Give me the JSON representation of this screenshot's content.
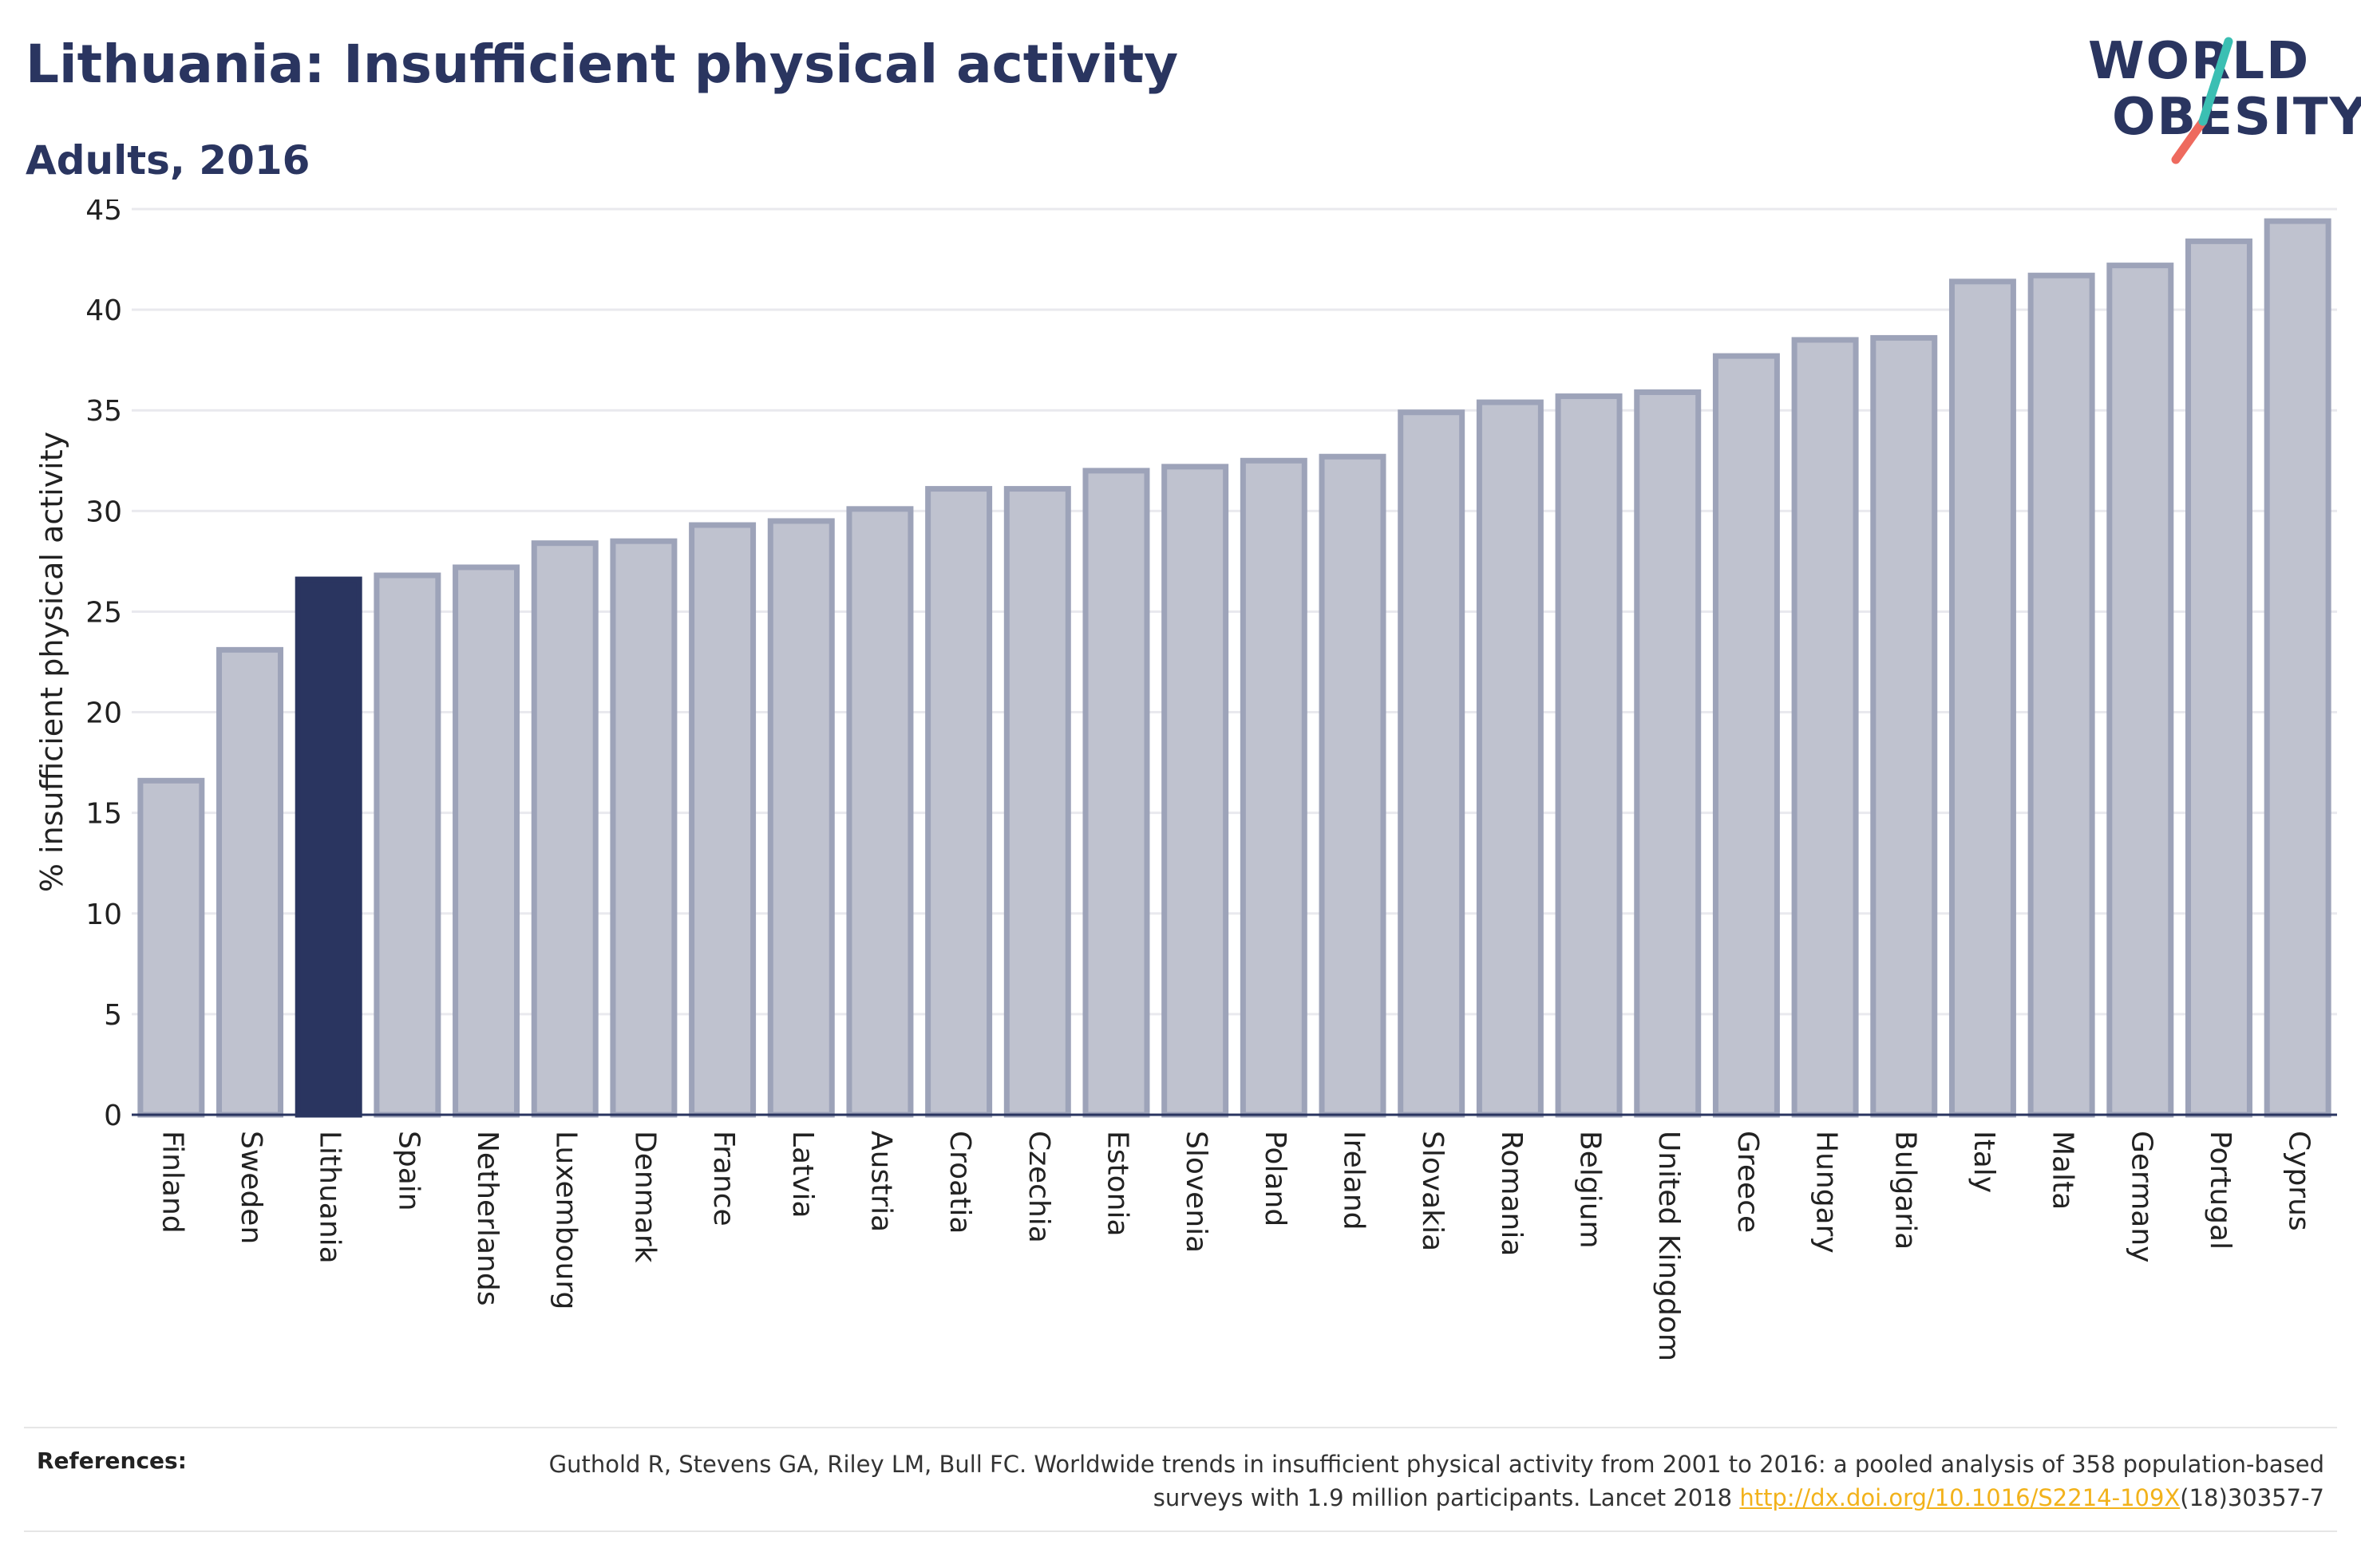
{
  "title": "Lithuania: Insufficient physical activity",
  "subtitle": "Adults, 2016",
  "logo": {
    "line1": "WORLD",
    "line2": "OBESITY"
  },
  "colors": {
    "text": "#2a3560",
    "bar_default": "#bfc2cf",
    "bar_default_stroke": "#9da3b9",
    "bar_highlight": "#2a3560",
    "logo_teal": "#3bbfb3",
    "logo_red": "#ee6a5e",
    "link": "#f2b21b"
  },
  "chart_data": {
    "type": "bar",
    "ylabel": "% insufficient physical activity",
    "ylim": [
      0,
      45
    ],
    "yticks": [
      0,
      5,
      10,
      15,
      20,
      25,
      30,
      35,
      40,
      45
    ],
    "grid": true,
    "highlight": "Lithuania",
    "categories": [
      "Finland",
      "Sweden",
      "Lithuania",
      "Spain",
      "Netherlands",
      "Luxembourg",
      "Denmark",
      "France",
      "Latvia",
      "Austria",
      "Croatia",
      "Czechia",
      "Estonia",
      "Slovenia",
      "Poland",
      "Ireland",
      "Slovakia",
      "Romania",
      "Belgium",
      "United Kingdom",
      "Greece",
      "Hungary",
      "Bulgaria",
      "Italy",
      "Malta",
      "Germany",
      "Portugal",
      "Cyprus"
    ],
    "values": [
      16.6,
      23.1,
      26.6,
      26.8,
      27.2,
      28.4,
      28.5,
      29.3,
      29.5,
      30.1,
      31.1,
      31.1,
      32.0,
      32.2,
      32.5,
      32.7,
      34.9,
      35.4,
      35.7,
      35.9,
      37.7,
      38.5,
      38.6,
      41.4,
      41.7,
      42.2,
      43.4,
      44.4
    ]
  },
  "references": {
    "label": "References:",
    "text_before": "Guthold R, Stevens GA, Riley LM, Bull FC. Worldwide trends in insufficient physical activity from 2001 to 2016: a pooled analysis of 358 population-based surveys with 1.9 million participants. Lancet 2018 ",
    "link_text": "http://dx.doi.org/10.1016/S2214-109X",
    "text_after": "(18)30357-7"
  }
}
